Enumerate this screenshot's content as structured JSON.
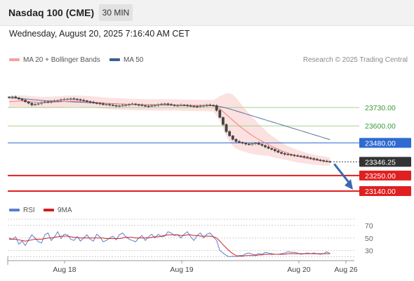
{
  "header": {
    "title": "Nasdaq 100 (CME)",
    "timeframe": "30 MIN"
  },
  "datetime": "Wednesday, August 20, 2025 7:16:40 AM CET",
  "legend": {
    "ma20_label": "MA 20 + Bollinger Bands",
    "ma50_label": "MA 50",
    "credit": "Research © 2025 Trading Central"
  },
  "rsi_legend": {
    "rsi_label": "RSI",
    "ma9_label": "9MA"
  },
  "colors": {
    "ma20": "#f08080",
    "ma50": "#3a5f8f",
    "resistance": "#a8d08d",
    "pivot": "#2e6ad0",
    "support": "#e02020",
    "current": "#333333",
    "arrow": "#3a6ab0",
    "rsi": "#5a7fd0",
    "rsi_ma": "#d02020"
  },
  "chart_data": [
    {
      "type": "candlestick",
      "title": "Nasdaq 100 (CME)",
      "ylim": [
        23140,
        23790
      ],
      "x_labels": [
        "Aug 18",
        "Aug 19",
        "Aug 20",
        "Aug 26"
      ],
      "levels": [
        {
          "label": "23730.00",
          "value": 23730,
          "kind": "resistance"
        },
        {
          "label": "23600.00",
          "value": 23600,
          "kind": "resistance"
        },
        {
          "label": "23480.00",
          "value": 23480,
          "kind": "pivot"
        },
        {
          "label": "23346.25",
          "value": 23346.25,
          "kind": "current"
        },
        {
          "label": "23250.00",
          "value": 23250,
          "kind": "support"
        },
        {
          "label": "23140.00",
          "value": 23140,
          "kind": "support"
        }
      ],
      "closes": [
        23800,
        23805,
        23798,
        23790,
        23782,
        23770,
        23760,
        23748,
        23752,
        23758,
        23765,
        23770,
        23768,
        23772,
        23776,
        23780,
        23785,
        23788,
        23790,
        23792,
        23790,
        23786,
        23782,
        23778,
        23772,
        23768,
        23762,
        23760,
        23756,
        23750,
        23752,
        23748,
        23744,
        23740,
        23742,
        23745,
        23748,
        23752,
        23755,
        23750,
        23748,
        23744,
        23740,
        23738,
        23742,
        23746,
        23750,
        23754,
        23756,
        23752,
        23748,
        23744,
        23745,
        23748,
        23746,
        23742,
        23740,
        23738,
        23736,
        23740,
        23744,
        23748,
        23746,
        23744,
        23710,
        23660,
        23610,
        23560,
        23530,
        23505,
        23490,
        23484,
        23478,
        23472,
        23468,
        23475,
        23479,
        23470,
        23462,
        23452,
        23442,
        23434,
        23424,
        23414,
        23406,
        23400,
        23398,
        23394,
        23390,
        23388,
        23385,
        23380,
        23375,
        23370,
        23365,
        23360,
        23356,
        23352,
        23349,
        23346.25
      ],
      "ma20": [
        23770,
        23772,
        23774,
        23775,
        23775,
        23774,
        23772,
        23770,
        23768,
        23766,
        23765,
        23765,
        23766,
        23767,
        23768,
        23769,
        23770,
        23772,
        23773,
        23774,
        23775,
        23775,
        23774,
        23772,
        23771,
        23770,
        23768,
        23766,
        23764,
        23762,
        23760,
        23758,
        23757,
        23756,
        23755,
        23754,
        23753,
        23752,
        23752,
        23751,
        23750,
        23750,
        23749,
        23749,
        23748,
        23748,
        23748,
        23749,
        23749,
        23749,
        23748,
        23748,
        23747,
        23747,
        23746,
        23746,
        23745,
        23745,
        23744,
        23744,
        23744,
        23744,
        23743,
        23742,
        23735,
        23720,
        23700,
        23680,
        23660,
        23640,
        23620,
        23600,
        23582,
        23565,
        23548,
        23532,
        23518,
        23504,
        23492,
        23480,
        23468,
        23456,
        23445,
        23435,
        23425,
        23416,
        23408,
        23400,
        23393,
        23386,
        23380,
        23375,
        23370,
        23366,
        23362,
        23358,
        23355,
        23352,
        23350,
        23348
      ],
      "bollinger_band_width": [
        40,
        40,
        40,
        40,
        40,
        40,
        40,
        40,
        40,
        40,
        40,
        40,
        40,
        40,
        40,
        40,
        40,
        40,
        40,
        40,
        40,
        40,
        40,
        40,
        40,
        40,
        40,
        40,
        40,
        40,
        40,
        40,
        40,
        40,
        40,
        40,
        40,
        40,
        40,
        40,
        40,
        40,
        40,
        40,
        40,
        40,
        40,
        40,
        40,
        40,
        40,
        40,
        40,
        40,
        40,
        40,
        40,
        40,
        40,
        40,
        40,
        40,
        40,
        40,
        60,
        90,
        120,
        150,
        170,
        180,
        180,
        170,
        160,
        150,
        140,
        130,
        120,
        110,
        100,
        90,
        80,
        75,
        70,
        65,
        60,
        55,
        50,
        48,
        46,
        44,
        42,
        40,
        38,
        36,
        35,
        34,
        33,
        32,
        31,
        30
      ],
      "ma50": [
        23800,
        23798,
        23796,
        23794,
        23792,
        23790,
        23788,
        23786,
        23784,
        23782,
        23780,
        23778,
        23777,
        23776,
        23775,
        23774,
        23773,
        23772,
        23771,
        23770,
        23769,
        23768,
        23767,
        23766,
        23765,
        23764,
        23763,
        23762,
        23761,
        23760,
        23759,
        23758,
        23757,
        23756,
        23755,
        23754,
        23753,
        23752,
        23752,
        23751,
        23751,
        23750,
        23750,
        23749,
        23749,
        23748,
        23748,
        23748,
        23747,
        23747,
        23747,
        23746,
        23746,
        23746,
        23745,
        23745,
        23745,
        23744,
        23744,
        23744,
        23744,
        23744,
        23743,
        23742,
        23740,
        23737,
        23732,
        23726,
        23720,
        23713,
        23706,
        23699,
        23692,
        23685,
        23678,
        23671,
        23664,
        23657,
        23650,
        23643,
        23636,
        23629,
        23622,
        23615,
        23608,
        23601,
        23594,
        23587,
        23580,
        23573,
        23566,
        23559,
        23552,
        23545,
        23538,
        23531,
        23524,
        23517,
        23510,
        23503
      ]
    },
    {
      "type": "line",
      "title": "RSI",
      "ylim": [
        15,
        80
      ],
      "y_ticks": [
        70,
        50,
        30
      ],
      "series": [
        {
          "name": "RSI",
          "values": [
            50,
            48,
            52,
            40,
            45,
            38,
            47,
            55,
            50,
            44,
            42,
            55,
            58,
            46,
            52,
            60,
            49,
            56,
            55,
            48,
            46,
            52,
            45,
            50,
            55,
            48,
            45,
            56,
            52,
            44,
            46,
            50,
            53,
            47,
            55,
            58,
            52,
            48,
            46,
            44,
            50,
            54,
            46,
            52,
            56,
            50,
            56,
            52,
            53,
            60,
            58,
            54,
            55,
            50,
            56,
            60,
            52,
            46,
            54,
            58,
            50,
            56,
            58,
            52,
            46,
            30,
            26,
            22,
            20,
            21,
            20,
            22,
            22,
            25,
            26,
            24,
            23,
            25,
            24,
            27,
            26,
            25,
            24,
            24,
            25,
            26,
            28,
            27,
            27,
            26,
            24,
            25,
            26,
            25,
            26,
            25,
            24,
            25,
            28,
            25
          ]
        },
        {
          "name": "9MA",
          "values": [
            48,
            48,
            48,
            47,
            46,
            45,
            46,
            47,
            48,
            48,
            48,
            49,
            50,
            50,
            51,
            52,
            53,
            53,
            53,
            52,
            51,
            51,
            50,
            50,
            50,
            50,
            50,
            50,
            50,
            50,
            49,
            49,
            49,
            49,
            49,
            50,
            51,
            51,
            51,
            50,
            50,
            50,
            50,
            50,
            51,
            52,
            52,
            53,
            54,
            55,
            55,
            55,
            55,
            54,
            54,
            55,
            55,
            54,
            54,
            53,
            53,
            53,
            53,
            52,
            50,
            45,
            39,
            34,
            29,
            25,
            22,
            21,
            21,
            22,
            22,
            22,
            22,
            23,
            23,
            24,
            24,
            24,
            24,
            24,
            24,
            24,
            25,
            25,
            25,
            25,
            25,
            25,
            25,
            25,
            25,
            25,
            25,
            25,
            25,
            25
          ]
        }
      ]
    }
  ]
}
